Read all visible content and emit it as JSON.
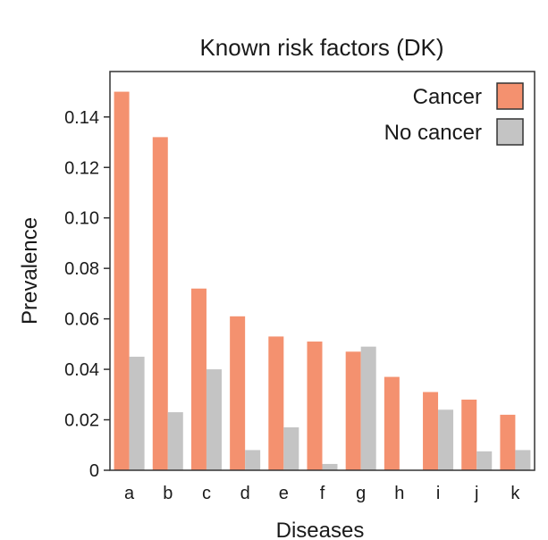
{
  "chart_data": {
    "type": "bar",
    "title": "Known risk factors (DK)",
    "xlabel": "Diseases",
    "ylabel": "Prevalence",
    "categories": [
      "a",
      "b",
      "c",
      "d",
      "e",
      "f",
      "g",
      "h",
      "i",
      "j",
      "k"
    ],
    "series": [
      {
        "name": "Cancer",
        "color": "#F4916F",
        "values": [
          0.15,
          0.132,
          0.072,
          0.061,
          0.053,
          0.051,
          0.047,
          0.037,
          0.031,
          0.028,
          0.022
        ]
      },
      {
        "name": "No cancer",
        "color": "#C4C4C4",
        "values": [
          0.045,
          0.023,
          0.04,
          0.008,
          0.017,
          0.0025,
          0.049,
          0.0,
          0.024,
          0.0075,
          0.008
        ]
      }
    ],
    "yticks": [
      {
        "value": 0,
        "label": "0"
      },
      {
        "value": 0.02,
        "label": "0.02"
      },
      {
        "value": 0.04,
        "label": "0.04"
      },
      {
        "value": 0.06,
        "label": "0.06"
      },
      {
        "value": 0.08,
        "label": "0.08"
      },
      {
        "value": 0.1,
        "label": "0.10"
      },
      {
        "value": 0.12,
        "label": "0.12"
      },
      {
        "value": 0.14,
        "label": "0.14"
      }
    ],
    "ylim": [
      0,
      0.158
    ],
    "grid": false,
    "legend_position": "top-right"
  }
}
